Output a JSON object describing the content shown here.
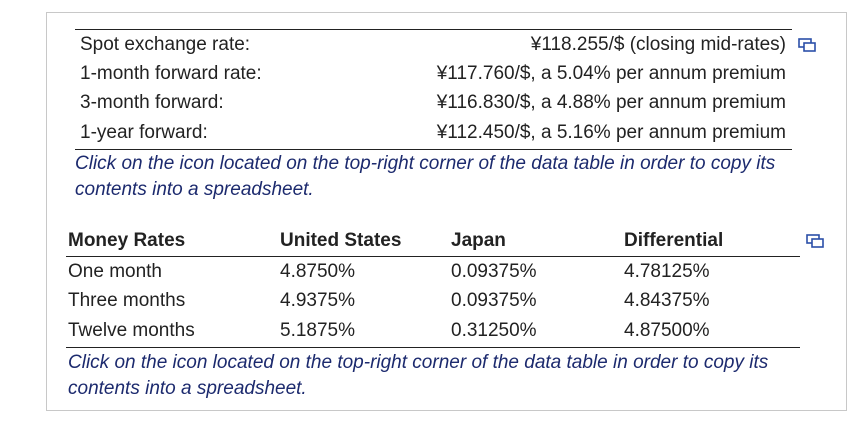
{
  "exchange_table": {
    "rows": [
      [
        "Spot exchange rate:",
        "¥118.255/$ (closing mid-rates)"
      ],
      [
        "1-month forward rate:",
        "¥117.760/$, a 5.04% per annum premium"
      ],
      [
        "3-month forward:",
        "¥116.830/$, a 4.88% per annum premium"
      ],
      [
        "1-year forward:",
        "¥112.450/$, a 5.16% per annum premium"
      ]
    ]
  },
  "exchange_note": "Click on the icon located on the top-right corner of the data table in order to copy its contents into a spreadsheet.",
  "money_table": {
    "header": [
      "Money Rates",
      "United States",
      "Japan",
      "Differential"
    ],
    "rows": [
      [
        "One month",
        "4.8750%",
        "0.09375%",
        "4.78125%"
      ],
      [
        "Three months",
        "4.9375%",
        "0.09375%",
        "4.84375%"
      ],
      [
        "Twelve months",
        "5.1875%",
        "0.31250%",
        "4.87500%"
      ]
    ]
  },
  "money_note": "Click on the icon located on the top-right corner of the data table in order to copy its contents into a spreadsheet."
}
